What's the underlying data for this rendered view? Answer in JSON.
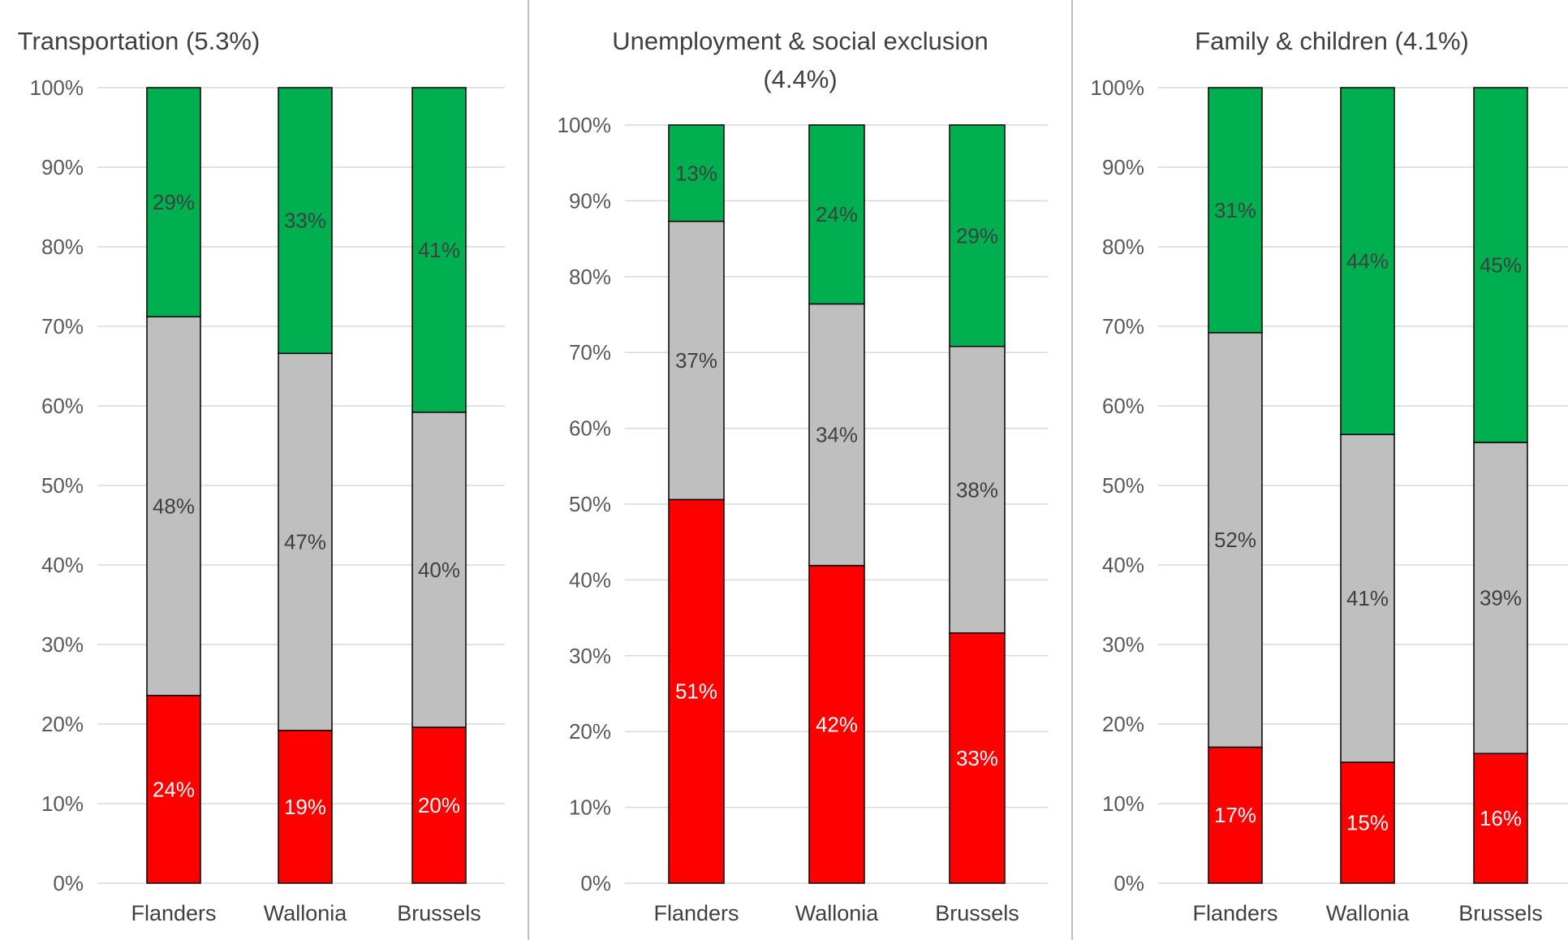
{
  "colors": {
    "negative": "#ff0000",
    "neutral": "#bfbfbf",
    "positive": "#00b050",
    "grid": "#d9d9d9",
    "panel_border": "#bfbfbf",
    "label_dark": "#404040",
    "label_light": "#ffffff"
  },
  "chart_data": [
    {
      "type": "bar",
      "stacked": true,
      "title": "Transportation (5.3%)",
      "categories": [
        "Flanders",
        "Wallonia",
        "Brussels"
      ],
      "ylim": [
        0,
        100
      ],
      "yticks": [
        "0%",
        "10%",
        "20%",
        "30%",
        "40%",
        "50%",
        "60%",
        "70%",
        "80%",
        "90%",
        "100%"
      ],
      "grid": true,
      "series": [
        {
          "color": "#ff0000",
          "values": [
            23.6,
            19.2,
            19.6
          ],
          "labels": [
            "24%",
            "19%",
            "20%"
          ]
        },
        {
          "color": "#bfbfbf",
          "values": [
            47.6,
            47.4,
            39.6
          ],
          "labels": [
            "48%",
            "47%",
            "40%"
          ]
        },
        {
          "color": "#00b050",
          "values": [
            28.8,
            33.4,
            40.8
          ],
          "labels": [
            "29%",
            "33%",
            "41%"
          ]
        }
      ]
    },
    {
      "type": "bar",
      "stacked": true,
      "title": "Unemployment & social exclusion (4.4%)",
      "categories": [
        "Flanders",
        "Wallonia",
        "Brussels"
      ],
      "ylim": [
        0,
        100
      ],
      "yticks": [
        "0%",
        "10%",
        "20%",
        "30%",
        "40%",
        "50%",
        "60%",
        "70%",
        "80%",
        "90%",
        "100%"
      ],
      "grid": true,
      "series": [
        {
          "color": "#ff0000",
          "values": [
            50.6,
            41.9,
            33.0
          ],
          "labels": [
            "51%",
            "42%",
            "33%"
          ]
        },
        {
          "color": "#bfbfbf",
          "values": [
            36.7,
            34.5,
            37.8
          ],
          "labels": [
            "37%",
            "34%",
            "38%"
          ]
        },
        {
          "color": "#00b050",
          "values": [
            12.7,
            23.6,
            29.2
          ],
          "labels": [
            "13%",
            "24%",
            "29%"
          ]
        }
      ]
    },
    {
      "type": "bar",
      "stacked": true,
      "title": "Family & children (4.1%)",
      "categories": [
        "Flanders",
        "Wallonia",
        "Brussels"
      ],
      "ylim": [
        0,
        100
      ],
      "yticks": [
        "0%",
        "10%",
        "20%",
        "30%",
        "40%",
        "50%",
        "60%",
        "70%",
        "80%",
        "90%",
        "100%"
      ],
      "grid": true,
      "series": [
        {
          "color": "#ff0000",
          "values": [
            17.1,
            15.2,
            16.3
          ],
          "labels": [
            "17%",
            "15%",
            "16%"
          ]
        },
        {
          "color": "#bfbfbf",
          "values": [
            52.1,
            41.2,
            39.1
          ],
          "labels": [
            "52%",
            "41%",
            "39%"
          ]
        },
        {
          "color": "#00b050",
          "values": [
            30.8,
            43.6,
            44.6
          ],
          "labels": [
            "31%",
            "44%",
            "45%"
          ]
        }
      ]
    }
  ]
}
